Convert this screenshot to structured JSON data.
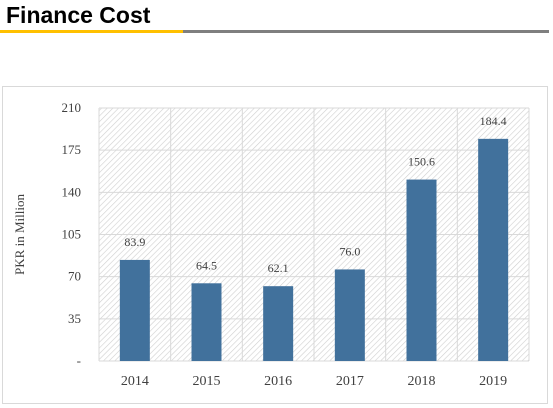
{
  "page": {
    "title": "Finance Cost"
  },
  "colors": {
    "accent": "#ffc000",
    "rule": "#7f7f7f",
    "bar": "#41719c",
    "grid": "#d9d9d9",
    "hatch": "#d0d0d0"
  },
  "chart_data": {
    "type": "bar",
    "title": "",
    "xlabel": "",
    "ylabel": "PKR in Million",
    "categories": [
      "2014",
      "2015",
      "2016",
      "2017",
      "2018",
      "2019"
    ],
    "values": [
      83.9,
      64.5,
      62.1,
      76.0,
      150.6,
      184.4
    ],
    "data_labels": [
      "83.9",
      "64.5",
      "62.1",
      "76.0",
      "150.6",
      "184.4"
    ],
    "ylim": [
      0,
      210
    ],
    "yticks": [
      0,
      35,
      70,
      105,
      140,
      175,
      210
    ],
    "ytick_labels": [
      "-",
      "35",
      "70",
      "105",
      "140",
      "175",
      "210"
    ],
    "grid": true,
    "plot_background": "diagonal hatch",
    "legend": "none"
  }
}
